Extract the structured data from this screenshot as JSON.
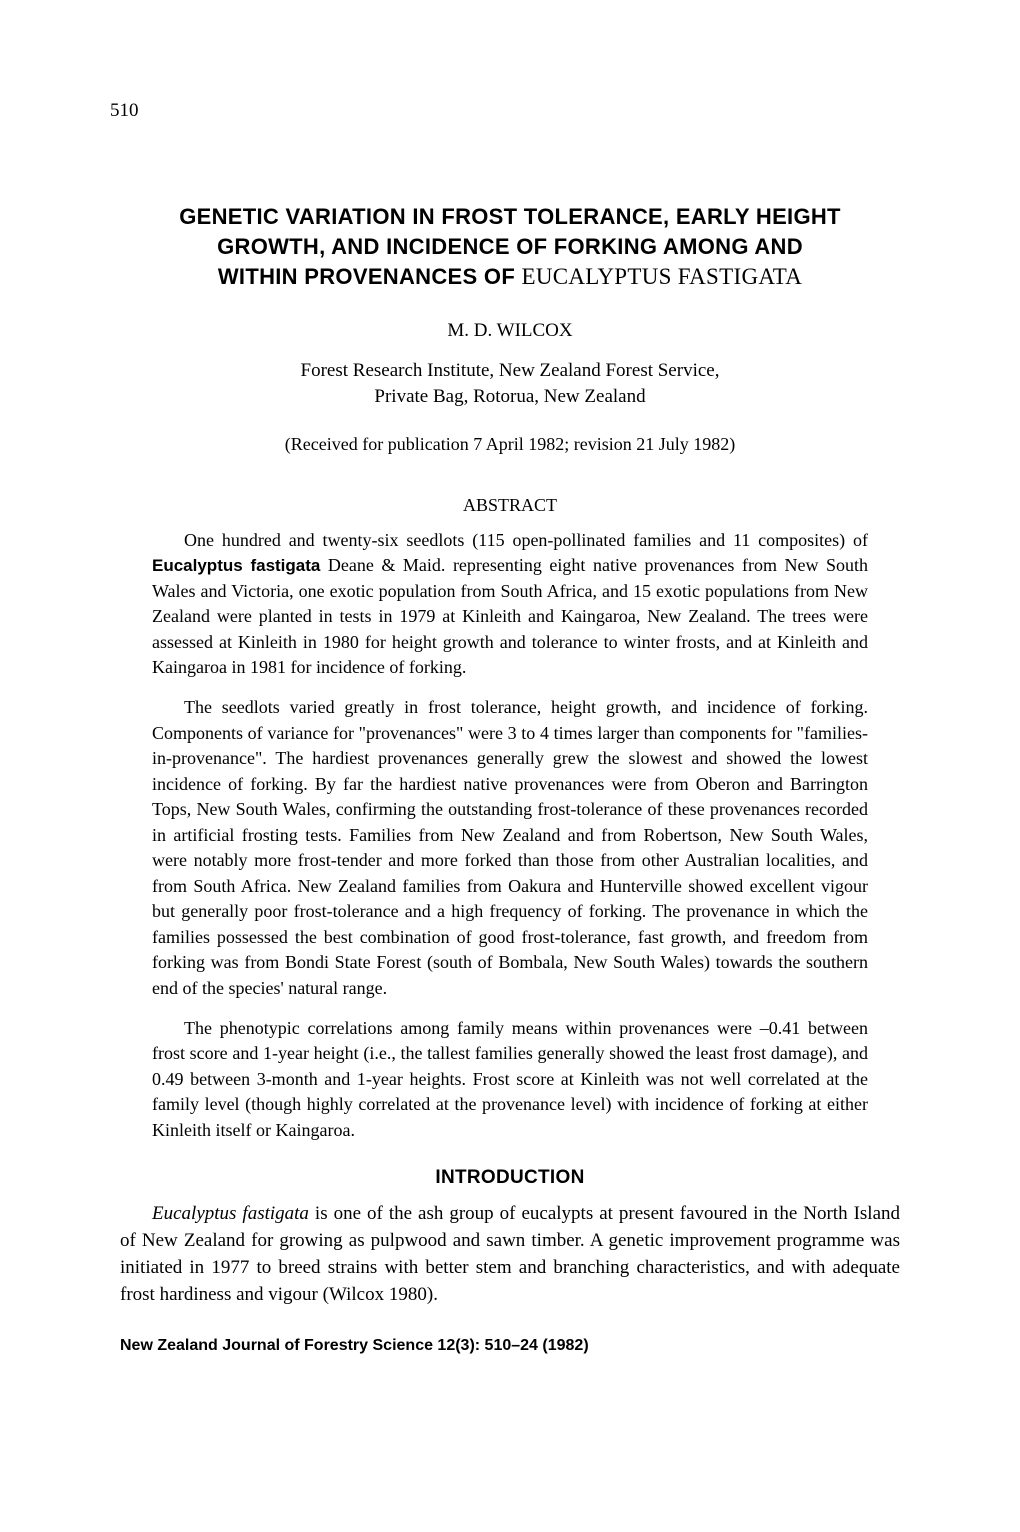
{
  "page_number": "510",
  "title_line1": "GENETIC VARIATION IN FROST TOLERANCE, EARLY HEIGHT",
  "title_line2": "GROWTH, AND INCIDENCE OF FORKING AMONG AND",
  "title_line3": "WITHIN PROVENANCES OF ",
  "title_species": "EUCALYPTUS FASTIGATA",
  "author": "M. D. WILCOX",
  "affiliation_line1": "Forest Research Institute, New Zealand Forest Service,",
  "affiliation_line2": "Private Bag, Rotorua, New Zealand",
  "received": "(Received for publication 7 April 1982; revision 21 July 1982)",
  "abstract_heading": "ABSTRACT",
  "abstract_p1_before": "One hundred and twenty-six seedlots (115 open-pollinated families and 11 composites) of ",
  "abstract_p1_species": "Eucalyptus fastigata",
  "abstract_p1_after": " Deane & Maid. representing eight native provenances from New South Wales and Victoria, one exotic population from South Africa, and 15 exotic populations from New Zealand were planted in tests in 1979 at Kinleith and Kaingaroa, New Zealand. The trees were assessed at Kinleith in 1980 for height growth and tolerance to winter frosts, and at Kinleith and Kaingaroa in 1981 for incidence of forking.",
  "abstract_p2": "The seedlots varied greatly in frost tolerance, height growth, and incidence of forking. Components of variance for \"provenances\" were 3 to 4 times larger than components for \"families-in-provenance\". The hardiest provenances generally grew the slowest and showed the lowest incidence of forking. By far the hardiest native provenances were from Oberon and Barrington Tops, New South Wales, confirming the outstanding frost-tolerance of these provenances recorded in artificial frosting tests. Families from New Zealand and from Robertson, New South Wales, were notably more frost-tender and more forked than those from other Australian localities, and from South Africa. New Zealand families from Oakura and Hunterville showed excellent vigour but generally poor frost-tolerance and a high frequency of forking. The provenance in which the families possessed the best combination of good frost-tolerance, fast growth, and freedom from forking was from Bondi State Forest (south of Bombala, New South Wales) towards the southern end of the species' natural range.",
  "abstract_p3": "The phenotypic correlations among family means within provenances were –0.41 between frost score and 1-year height (i.e., the tallest families generally showed the least frost damage), and 0.49 between 3-month and 1-year heights. Frost score at Kinleith was not well correlated at the family level (though highly correlated at the provenance level) with incidence of forking at either Kinleith itself or Kaingaroa.",
  "intro_heading": "INTRODUCTION",
  "intro_species": "Eucalyptus fastigata",
  "intro_p1_after": " is one of the ash group of eucalypts at present favoured in the North Island of New Zealand for growing as pulpwood and sawn timber. A genetic improvement programme was initiated in 1977 to breed strains with better stem and branching characteristics, and with adequate frost hardiness and vigour (Wilcox 1980).",
  "footer": "New Zealand Journal of Forestry Science 12(3): 510–24 (1982)"
}
